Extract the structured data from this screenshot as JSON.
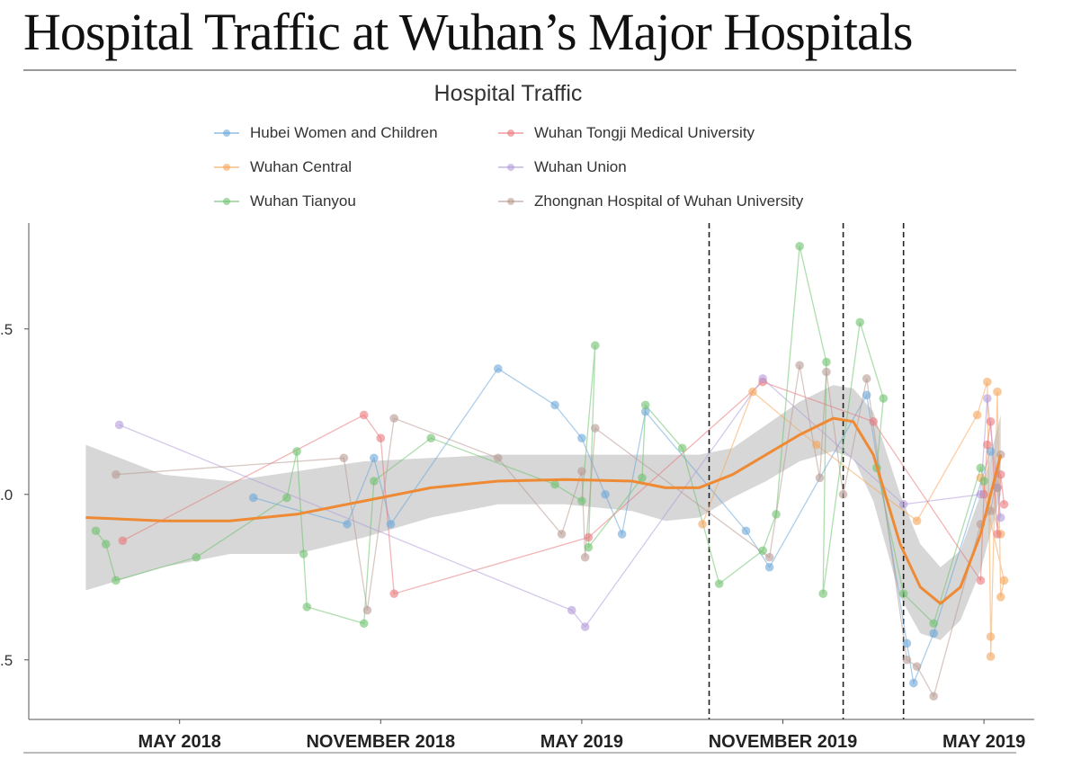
{
  "headline": "Hospital Traffic at Wuhan’s Major Hospitals",
  "chart_data": {
    "type": "line",
    "title": "Hospital Traffic",
    "xlabel": "",
    "ylabel": "",
    "ylim": [
      -0.68,
      0.82
    ],
    "xlim": [
      0,
      30
    ],
    "yticks": [
      {
        "value": 0.5,
        "label": ".5"
      },
      {
        "value": 0.0,
        "label": ".0"
      },
      {
        "value": -0.5,
        "label": ".5"
      }
    ],
    "xticks": [
      {
        "value": 4.5,
        "label": "MAY 2018"
      },
      {
        "value": 10.5,
        "label": "NOVEMBER 2018"
      },
      {
        "value": 16.5,
        "label": "MAY 2019"
      },
      {
        "value": 22.5,
        "label": "NOVEMBER 2019"
      },
      {
        "value": 28.5,
        "label": "MAY 2019"
      }
    ],
    "vlines": [
      20.3,
      24.3,
      26.1
    ],
    "legend_position": "top-center",
    "series": [
      {
        "name": "Hubei Women and Children",
        "color": "#6aa6d9",
        "points": [
          [
            6.7,
            -0.01
          ],
          [
            9.5,
            -0.09
          ],
          [
            10.3,
            0.11
          ],
          [
            10.8,
            -0.09
          ],
          [
            14.0,
            0.38
          ],
          [
            15.7,
            0.27
          ],
          [
            16.5,
            0.17
          ],
          [
            17.2,
            0.0
          ],
          [
            17.7,
            -0.12
          ],
          [
            18.4,
            0.25
          ],
          [
            21.4,
            -0.11
          ],
          [
            22.1,
            -0.22
          ],
          [
            25.0,
            0.3
          ],
          [
            26.2,
            -0.45
          ],
          [
            26.4,
            -0.57
          ],
          [
            27.0,
            -0.42
          ],
          [
            28.7,
            0.13
          ]
        ]
      },
      {
        "name": "Wuhan Central",
        "color": "#f5a55a",
        "points": [
          [
            20.1,
            -0.09
          ],
          [
            21.6,
            0.31
          ],
          [
            23.5,
            0.15
          ],
          [
            26.5,
            -0.08
          ],
          [
            28.3,
            0.24
          ],
          [
            28.6,
            0.34
          ],
          [
            28.7,
            -0.43
          ],
          [
            28.7,
            -0.49
          ],
          [
            28.9,
            0.31
          ],
          [
            29.0,
            -0.31
          ],
          [
            29.1,
            -0.26
          ],
          [
            28.4,
            0.05
          ],
          [
            29.0,
            -0.12
          ]
        ]
      },
      {
        "name": "Wuhan Tianyou",
        "color": "#6cc26c",
        "points": [
          [
            2.0,
            -0.11
          ],
          [
            2.3,
            -0.15
          ],
          [
            2.6,
            -0.26
          ],
          [
            5.0,
            -0.19
          ],
          [
            7.7,
            -0.01
          ],
          [
            8.0,
            0.13
          ],
          [
            8.2,
            -0.18
          ],
          [
            8.3,
            -0.34
          ],
          [
            10.0,
            -0.39
          ],
          [
            10.3,
            0.04
          ],
          [
            12.0,
            0.17
          ],
          [
            15.7,
            0.03
          ],
          [
            16.5,
            -0.02
          ],
          [
            16.9,
            0.45
          ],
          [
            16.7,
            -0.16
          ],
          [
            18.3,
            0.05
          ],
          [
            18.4,
            0.27
          ],
          [
            19.5,
            0.14
          ],
          [
            20.6,
            -0.27
          ],
          [
            21.9,
            -0.17
          ],
          [
            22.3,
            -0.06
          ],
          [
            23.0,
            0.75
          ],
          [
            23.8,
            0.4
          ],
          [
            23.7,
            -0.3
          ],
          [
            24.8,
            0.52
          ],
          [
            25.5,
            0.29
          ],
          [
            25.3,
            0.08
          ],
          [
            26.1,
            -0.3
          ],
          [
            27.0,
            -0.39
          ],
          [
            28.4,
            0.08
          ],
          [
            28.5,
            0.04
          ]
        ]
      },
      {
        "name": "Wuhan Tongji Medical University",
        "color": "#e8767a",
        "points": [
          [
            2.8,
            -0.14
          ],
          [
            10.0,
            0.24
          ],
          [
            10.5,
            0.17
          ],
          [
            10.9,
            -0.3
          ],
          [
            16.7,
            -0.13
          ],
          [
            21.9,
            0.34
          ],
          [
            25.2,
            0.22
          ],
          [
            28.4,
            -0.26
          ],
          [
            28.5,
            0.0
          ],
          [
            28.6,
            0.15
          ],
          [
            28.7,
            0.22
          ],
          [
            28.9,
            -0.12
          ],
          [
            29.0,
            0.06
          ],
          [
            29.1,
            -0.03
          ]
        ]
      },
      {
        "name": "Wuhan Union",
        "color": "#b39ad8",
        "points": [
          [
            2.7,
            0.21
          ],
          [
            16.2,
            -0.35
          ],
          [
            16.6,
            -0.4
          ],
          [
            21.9,
            0.35
          ],
          [
            26.1,
            -0.03
          ],
          [
            28.4,
            0.0
          ],
          [
            28.6,
            0.29
          ],
          [
            28.9,
            0.02
          ],
          [
            29.0,
            -0.07
          ]
        ]
      },
      {
        "name": "Zhongnan Hospital of Wuhan University",
        "color": "#b89a92",
        "points": [
          [
            2.6,
            0.06
          ],
          [
            9.4,
            0.11
          ],
          [
            10.1,
            -0.35
          ],
          [
            10.9,
            0.23
          ],
          [
            14.0,
            0.11
          ],
          [
            15.9,
            -0.12
          ],
          [
            16.5,
            0.07
          ],
          [
            16.6,
            -0.19
          ],
          [
            16.9,
            0.2
          ],
          [
            22.1,
            -0.19
          ],
          [
            23.0,
            0.39
          ],
          [
            23.6,
            0.05
          ],
          [
            23.8,
            0.37
          ],
          [
            24.3,
            0.0
          ],
          [
            25.0,
            0.35
          ],
          [
            26.2,
            -0.5
          ],
          [
            26.5,
            -0.52
          ],
          [
            27.0,
            -0.61
          ],
          [
            28.4,
            -0.09
          ],
          [
            28.7,
            -0.05
          ],
          [
            29.0,
            0.12
          ],
          [
            28.9,
            0.02
          ]
        ]
      }
    ],
    "trend": {
      "name": "smooth",
      "color": "#ef8a34",
      "ci_color": "#c9c9c9",
      "points": [
        [
          1.7,
          -0.07
        ],
        [
          4.0,
          -0.08
        ],
        [
          6.0,
          -0.08
        ],
        [
          8.0,
          -0.06
        ],
        [
          10.0,
          -0.02
        ],
        [
          12.0,
          0.02
        ],
        [
          14.0,
          0.04
        ],
        [
          16.0,
          0.045
        ],
        [
          18.0,
          0.04
        ],
        [
          19.0,
          0.02
        ],
        [
          20.0,
          0.02
        ],
        [
          21.0,
          0.06
        ],
        [
          22.0,
          0.12
        ],
        [
          23.0,
          0.18
        ],
        [
          24.0,
          0.23
        ],
        [
          24.6,
          0.22
        ],
        [
          25.2,
          0.12
        ],
        [
          26.0,
          -0.15
        ],
        [
          26.6,
          -0.28
        ],
        [
          27.2,
          -0.33
        ],
        [
          27.8,
          -0.28
        ],
        [
          28.4,
          -0.12
        ],
        [
          29.0,
          0.12
        ]
      ],
      "ci_upper": [
        0.15,
        0.06,
        0.04,
        0.07,
        0.1,
        0.11,
        0.12,
        0.12,
        0.12,
        0.12,
        0.12,
        0.14,
        0.21,
        0.28,
        0.33,
        0.32,
        0.25,
        0.0,
        -0.15,
        -0.22,
        -0.17,
        0.0,
        0.24
      ],
      "ci_lower": [
        -0.29,
        -0.22,
        -0.18,
        -0.18,
        -0.13,
        -0.07,
        -0.03,
        -0.03,
        -0.05,
        -0.08,
        -0.07,
        -0.01,
        0.04,
        0.1,
        0.13,
        0.11,
        -0.02,
        -0.31,
        -0.42,
        -0.44,
        -0.38,
        -0.23,
        0.0
      ]
    }
  }
}
